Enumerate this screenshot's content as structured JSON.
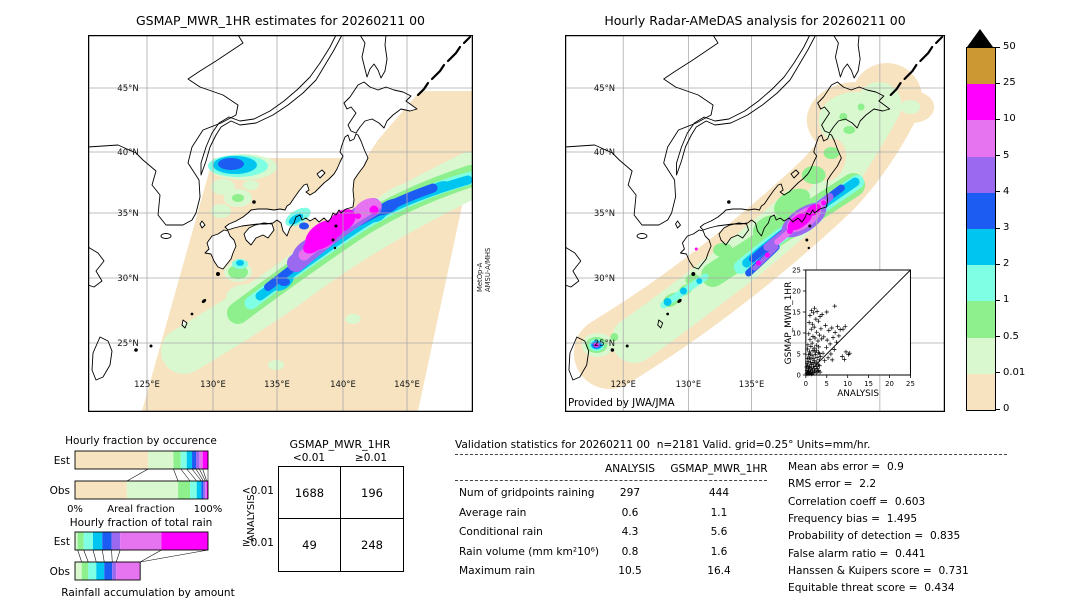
{
  "panels": {
    "left_map": {
      "title": "GSMAP_MWR_1HR estimates for 20260211 00",
      "lat_ticks": [
        "45°N",
        "40°N",
        "35°N",
        "30°N",
        "25°N"
      ],
      "lon_ticks": [
        "125°E",
        "130°E",
        "135°E",
        "140°E",
        "145°E"
      ],
      "satellite_note_lines": [
        "MetOp-A",
        "AMSU-A/MHS"
      ]
    },
    "right_map": {
      "title": "Hourly Radar-AMeDAS analysis for 20260211 00",
      "lat_ticks": [
        "45°N",
        "40°N",
        "35°N",
        "30°N",
        "25°N"
      ],
      "lon_ticks": [
        "125°E",
        "130°E",
        "135°E"
      ],
      "credit": "Provided by JWA/JMA"
    }
  },
  "colorbar": {
    "tick_labels_top_to_bottom": [
      "50",
      "25",
      "10",
      "5",
      "4",
      "3",
      "2",
      "1",
      "0.5",
      "0.01",
      "0"
    ],
    "colors_top_to_bottom": [
      "#CC9833",
      "#FF00FF",
      "#E673F0",
      "#9B69F0",
      "#1D5CF2",
      "#00C5F0",
      "#7FFFE4",
      "#8DF08C",
      "#D9F8D0",
      "#F7E3C0"
    ],
    "overflow_color": "#000000"
  },
  "validation": {
    "title": "Validation statistics for 20260211 00  n=2181 Valid. grid=0.25° Units=mm/hr.",
    "columns": [
      "ANALYSIS",
      "GSMAP_MWR_1HR"
    ],
    "rows": [
      {
        "label": "Num of gridpoints raining",
        "values": [
          "297",
          "444"
        ]
      },
      {
        "label": "Average rain",
        "values": [
          "0.6",
          "1.1"
        ]
      },
      {
        "label": "Conditional rain",
        "values": [
          "4.3",
          "5.6"
        ]
      },
      {
        "label": "Rain volume (mm km²10⁶)",
        "values": [
          "0.8",
          "1.6"
        ]
      },
      {
        "label": "Maximum rain",
        "values": [
          "10.5",
          "16.4"
        ]
      }
    ],
    "scores": [
      {
        "label": "Mean abs error",
        "value": "0.9"
      },
      {
        "label": "RMS error",
        "value": "2.2"
      },
      {
        "label": "Correlation coeff",
        "value": "0.603"
      },
      {
        "label": "Frequency bias",
        "value": "1.495"
      },
      {
        "label": "Probability of detection",
        "value": "0.835"
      },
      {
        "label": "False alarm ratio",
        "value": "0.441"
      },
      {
        "label": "Hanssen & Kuipers score",
        "value": "0.731"
      },
      {
        "label": "Equitable threat score",
        "value": "0.434"
      }
    ]
  },
  "chart_data": [
    {
      "id": "occurrence_fraction",
      "type": "bar",
      "stacked": true,
      "orientation": "horizontal",
      "title": "Hourly fraction by occurence",
      "xlabel": "Areal fraction",
      "x_left_label": "0%",
      "x_right_label": "100%",
      "row_labels": [
        "Est",
        "Obs"
      ],
      "classes": [
        "0-0.01",
        "0.01-0.5",
        "0.5-1",
        "1-2",
        "2-3",
        "3-4",
        "4-5",
        "5-10",
        "10-25"
      ],
      "colors": [
        "#F7E3C0",
        "#D9F8D0",
        "#8DF08C",
        "#7FFFE4",
        "#00C5F0",
        "#1D5CF2",
        "#9B69F0",
        "#E673F0",
        "#FF00FF"
      ],
      "series": [
        {
          "name": "Est",
          "values": [
            55,
            19,
            5.5,
            4.5,
            4,
            3,
            2.5,
            2.5,
            4
          ]
        },
        {
          "name": "Obs",
          "values": [
            39,
            38.5,
            9,
            5,
            3.5,
            1.5,
            1.5,
            1,
            1
          ]
        }
      ],
      "unit": "%"
    },
    {
      "id": "total_rain_fraction",
      "type": "bar",
      "stacked": true,
      "orientation": "horizontal",
      "title": "Hourly fraction of total rain",
      "caption": "Rainfall accumulation by amount",
      "row_labels": [
        "Est",
        "Obs"
      ],
      "classes": [
        "0.01-0.5",
        "0.5-1",
        "1-2",
        "2-3",
        "3-4",
        "4-5",
        "5-10",
        "10-25"
      ],
      "colors": [
        "#D9F8D0",
        "#8DF08C",
        "#7FFFE4",
        "#00C5F0",
        "#1D5CF2",
        "#9B69F0",
        "#E673F0",
        "#FF00FF"
      ],
      "series": [
        {
          "name": "Est",
          "values": [
            2,
            4.5,
            7,
            7,
            7,
            6.5,
            31,
            35
          ]
        },
        {
          "name": "Obs",
          "values": [
            5,
            5,
            6,
            6,
            6,
            3,
            18,
            0
          ]
        }
      ],
      "unit": "%"
    },
    {
      "id": "inset_scatter",
      "type": "scatter",
      "xlabel": "ANALYSIS",
      "ylabel": "GSMAP_MWR_1HR",
      "xlim": [
        0,
        25
      ],
      "ylim": [
        0,
        25
      ],
      "ticks": [
        0,
        5,
        10,
        15,
        20,
        25
      ],
      "diagonal": true,
      "points": [
        [
          0.2,
          0.3
        ],
        [
          0.3,
          1.1
        ],
        [
          0.4,
          0.6
        ],
        [
          0.5,
          2.2
        ],
        [
          0.5,
          0.2
        ],
        [
          0.6,
          1.5
        ],
        [
          0.7,
          3.2
        ],
        [
          0.7,
          0.9
        ],
        [
          0.8,
          2.0
        ],
        [
          0.9,
          4.1
        ],
        [
          1.0,
          0.4
        ],
        [
          1.0,
          1.8
        ],
        [
          1.1,
          2.9
        ],
        [
          1.2,
          0.7
        ],
        [
          1.2,
          3.8
        ],
        [
          1.3,
          1.4
        ],
        [
          1.4,
          2.5
        ],
        [
          1.5,
          0.3
        ],
        [
          1.5,
          4.6
        ],
        [
          1.6,
          1.0
        ],
        [
          1.7,
          3.0
        ],
        [
          1.8,
          2.1
        ],
        [
          1.9,
          0.6
        ],
        [
          2.0,
          1.6
        ],
        [
          2.0,
          3.4
        ],
        [
          2.1,
          0.9
        ],
        [
          2.2,
          2.7
        ],
        [
          2.3,
          4.9
        ],
        [
          2.4,
          1.2
        ],
        [
          2.5,
          0.5
        ],
        [
          2.5,
          3.1
        ],
        [
          2.6,
          2.0
        ],
        [
          2.7,
          4.2
        ],
        [
          2.8,
          1.5
        ],
        [
          2.9,
          0.8
        ],
        [
          3.0,
          2.4
        ],
        [
          3.0,
          5.3
        ],
        [
          3.1,
          1.1
        ],
        [
          3.2,
          3.6
        ],
        [
          3.3,
          2.2
        ],
        [
          3.4,
          0.7
        ],
        [
          3.5,
          4.4
        ],
        [
          0.3,
          2.8
        ],
        [
          0.6,
          4.8
        ],
        [
          0.9,
          5.5
        ],
        [
          1.1,
          5.0
        ],
        [
          1.7,
          5.8
        ],
        [
          2.2,
          5.5
        ],
        [
          0.4,
          3.9
        ],
        [
          0.8,
          0.3
        ],
        [
          1.3,
          0.2
        ],
        [
          1.9,
          4.0
        ],
        [
          2.6,
          5.9
        ],
        [
          3.3,
          5.1
        ],
        [
          0.2,
          1.9
        ],
        [
          0.5,
          7.2
        ],
        [
          0.7,
          9.8
        ],
        [
          0.8,
          12.5
        ],
        [
          1.0,
          8.4
        ],
        [
          1.0,
          14.2
        ],
        [
          1.2,
          6.8
        ],
        [
          1.3,
          10.9
        ],
        [
          1.4,
          15.3
        ],
        [
          1.5,
          7.6
        ],
        [
          1.6,
          12.1
        ],
        [
          1.7,
          9.2
        ],
        [
          1.8,
          14.8
        ],
        [
          2.0,
          6.4
        ],
        [
          2.0,
          11.4
        ],
        [
          2.1,
          15.9
        ],
        [
          2.2,
          8.8
        ],
        [
          2.4,
          13.3
        ],
        [
          2.5,
          7.1
        ],
        [
          2.6,
          10.2
        ],
        [
          2.7,
          15.1
        ],
        [
          2.9,
          8.1
        ],
        [
          3.0,
          12.8
        ],
        [
          3.1,
          6.7
        ],
        [
          3.3,
          9.5
        ],
        [
          3.4,
          13.9
        ],
        [
          3.6,
          11.0
        ],
        [
          3.8,
          8.6
        ],
        [
          3.9,
          14.4
        ],
        [
          4.1,
          5.2
        ],
        [
          4.3,
          9.1
        ],
        [
          4.5,
          3.4
        ],
        [
          4.7,
          11.8
        ],
        [
          4.9,
          6.6
        ],
        [
          5.1,
          8.3
        ],
        [
          5.3,
          4.1
        ],
        [
          5.5,
          10.6
        ],
        [
          5.8,
          7.4
        ],
        [
          6.0,
          5.0
        ],
        [
          6.2,
          11.2
        ],
        [
          6.5,
          8.9
        ],
        [
          6.8,
          6.1
        ],
        [
          7.0,
          10.1
        ],
        [
          7.3,
          7.8
        ],
        [
          7.6,
          11.5
        ],
        [
          7.9,
          9.3
        ],
        [
          8.2,
          10.8
        ],
        [
          6.3,
          3.6
        ],
        [
          5.0,
          15.0
        ],
        [
          8.7,
          4.4
        ],
        [
          9.2,
          3.7
        ],
        [
          9.6,
          5.5
        ],
        [
          10.2,
          4.9
        ],
        [
          10.5,
          5.2
        ],
        [
          8.9,
          10.9
        ],
        [
          9.4,
          11.6
        ],
        [
          6.9,
          16.4
        ],
        [
          0.4,
          6.2
        ],
        [
          0.6,
          0.8
        ]
      ]
    },
    {
      "id": "contingency_table",
      "type": "table",
      "col_title": "GSMAP_MWR_1HR",
      "row_title": "ANALYSIS",
      "col_labels": [
        "<0.01",
        "≥0.01"
      ],
      "row_labels": [
        "<0.01",
        "≥0.01"
      ],
      "values": [
        [
          "1688",
          "196"
        ],
        [
          "49",
          "248"
        ]
      ]
    }
  ]
}
